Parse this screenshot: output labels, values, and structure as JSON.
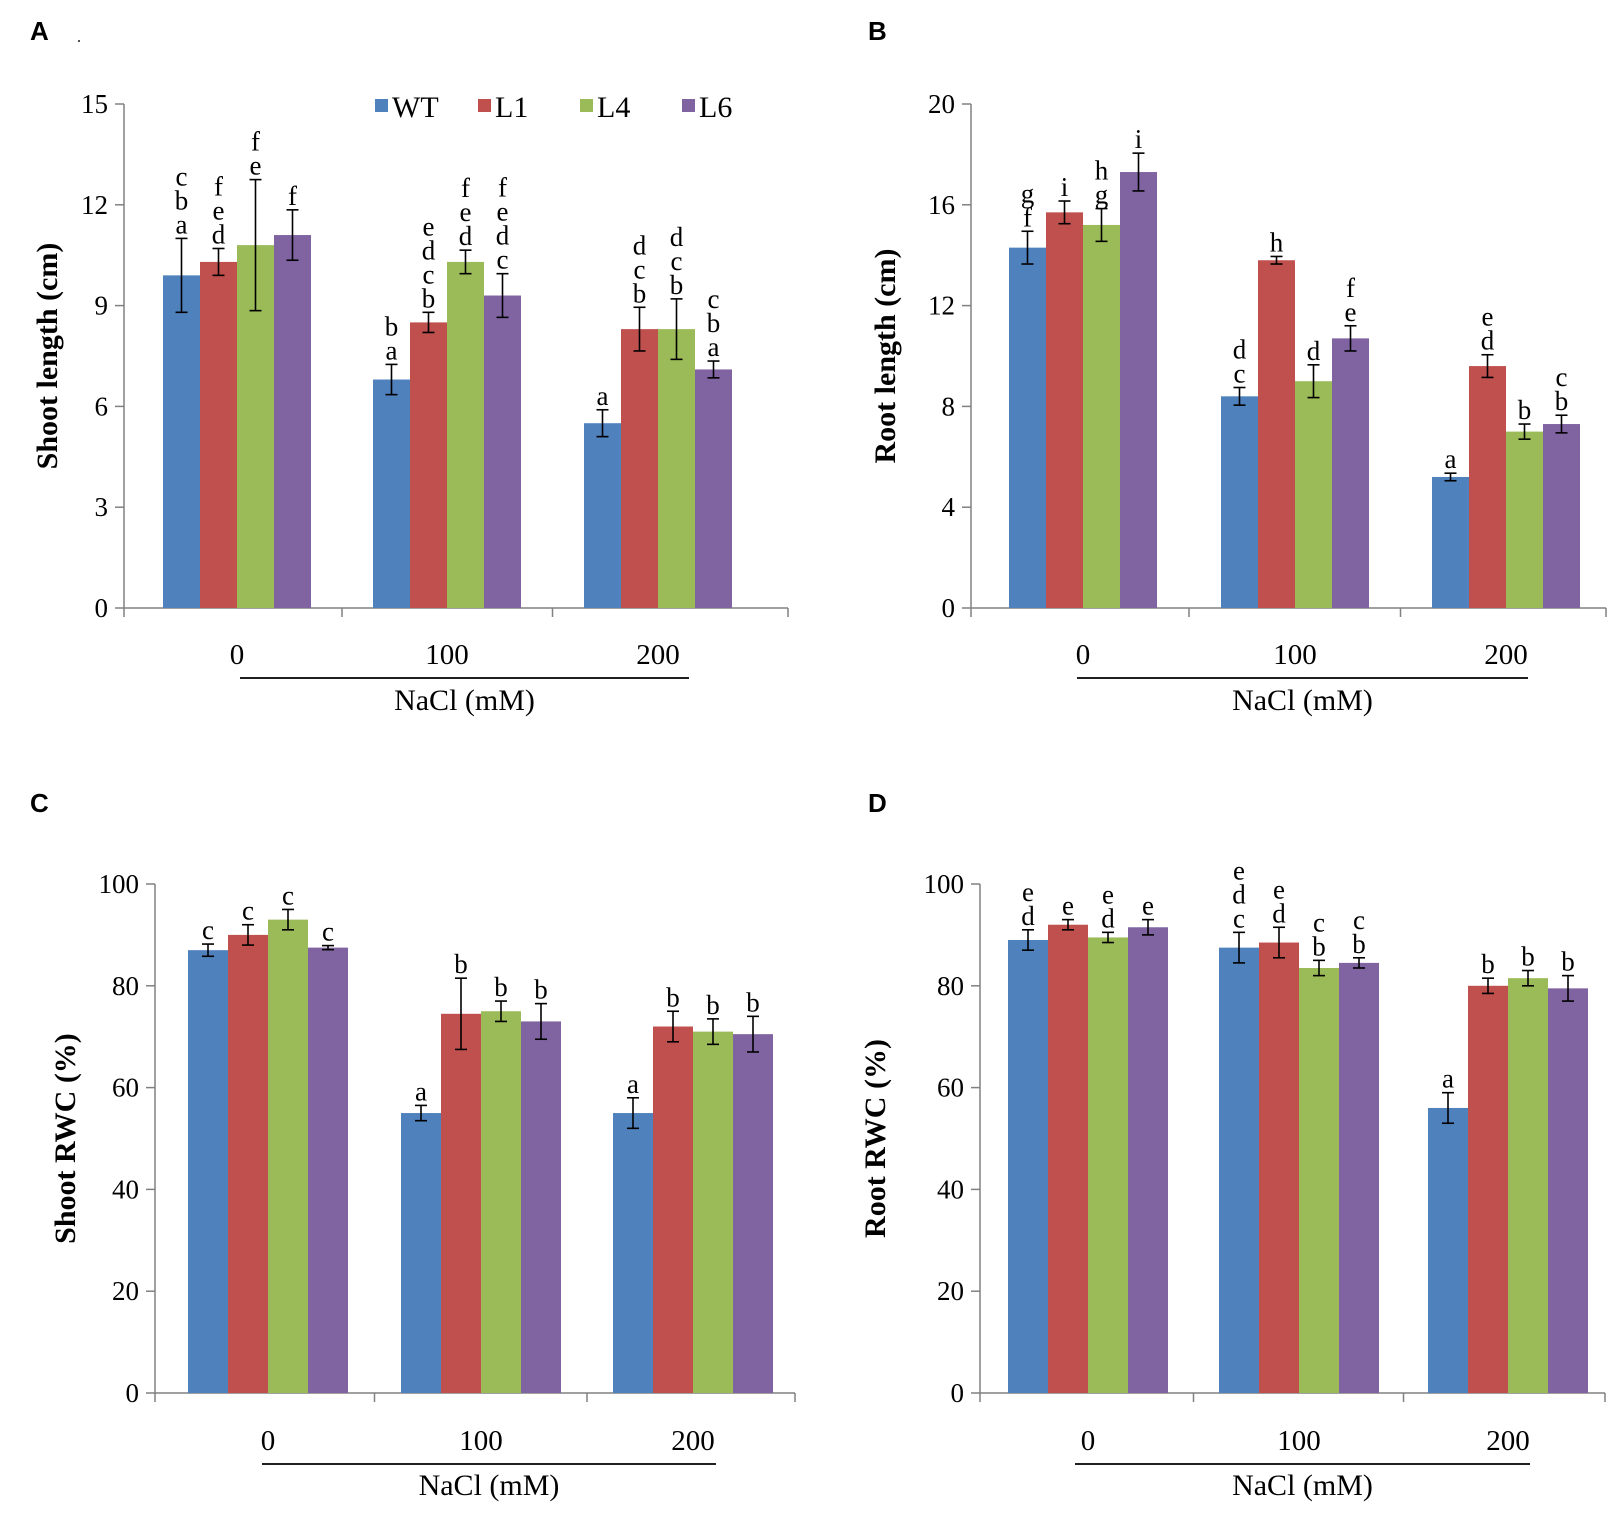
{
  "figure": {
    "colors": {
      "WT": "#4F81BD",
      "L1": "#C0504D",
      "L4": "#9BBB59",
      "L6": "#8064A2"
    }
  },
  "chart_data": [
    {
      "panel": "A",
      "type": "bar",
      "ylabel": "Shoot length (cm)",
      "xlabel": "NaCl (mM)",
      "ylim": [
        0,
        15
      ],
      "yticks": [
        0,
        3,
        6,
        9,
        12,
        15
      ],
      "categories": [
        "0",
        "100",
        "200"
      ],
      "legend": [
        "WT",
        "L1",
        "L4",
        "L6"
      ],
      "legend_position": "top-right",
      "series": [
        {
          "name": "WT",
          "values": [
            9.9,
            6.8,
            5.5
          ],
          "errors": [
            1.1,
            0.45,
            0.4
          ],
          "letters": [
            [
              "c",
              "b",
              "a"
            ],
            [
              "b",
              "a"
            ],
            [
              "a"
            ]
          ]
        },
        {
          "name": "L1",
          "values": [
            10.3,
            8.5,
            8.3
          ],
          "errors": [
            0.4,
            0.3,
            0.65
          ],
          "letters": [
            [
              "f",
              "e",
              "d"
            ],
            [
              "e",
              "d",
              "c",
              "b"
            ],
            [
              "d",
              "c",
              "b"
            ]
          ]
        },
        {
          "name": "L4",
          "values": [
            10.8,
            10.3,
            8.3
          ],
          "errors": [
            1.95,
            0.35,
            0.9
          ],
          "letters": [
            [
              "f",
              "e"
            ],
            [
              "f",
              "e",
              "d"
            ],
            [
              "d",
              "c",
              "b"
            ]
          ]
        },
        {
          "name": "L6",
          "values": [
            11.1,
            9.3,
            7.1
          ],
          "errors": [
            0.75,
            0.65,
            0.25
          ],
          "letters": [
            [
              "f"
            ],
            [
              "f",
              "e",
              "d",
              "c"
            ],
            [
              "c",
              "b",
              "a"
            ]
          ]
        }
      ]
    },
    {
      "panel": "B",
      "type": "bar",
      "ylabel": "Root length (cm)",
      "xlabel": "NaCl (mM)",
      "ylim": [
        0,
        20
      ],
      "yticks": [
        0,
        4,
        8,
        12,
        16,
        20
      ],
      "categories": [
        "0",
        "100",
        "200"
      ],
      "series": [
        {
          "name": "WT",
          "values": [
            14.3,
            8.4,
            5.2
          ],
          "errors": [
            0.65,
            0.35,
            0.15
          ],
          "letters": [
            [
              "g",
              "f"
            ],
            [
              "d",
              "c"
            ],
            [
              "a"
            ]
          ]
        },
        {
          "name": "L1",
          "values": [
            15.7,
            13.8,
            9.6
          ],
          "errors": [
            0.45,
            0.15,
            0.45
          ],
          "letters": [
            [
              "i"
            ],
            [
              "h"
            ],
            [
              "e",
              "d"
            ]
          ]
        },
        {
          "name": "L4",
          "values": [
            15.2,
            9.0,
            7.0
          ],
          "errors": [
            0.65,
            0.65,
            0.3
          ],
          "letters": [
            [
              "h",
              "g"
            ],
            [
              "d"
            ],
            [
              "b"
            ]
          ]
        },
        {
          "name": "L6",
          "values": [
            17.3,
            10.7,
            7.3
          ],
          "errors": [
            0.75,
            0.5,
            0.35
          ],
          "letters": [
            [
              "i"
            ],
            [
              "f",
              "e"
            ],
            [
              "c",
              "b"
            ]
          ]
        }
      ]
    },
    {
      "panel": "C",
      "type": "bar",
      "ylabel": "Shoot RWC (%)",
      "xlabel": "NaCl (mM)",
      "ylim": [
        0,
        100
      ],
      "yticks": [
        0,
        20,
        40,
        60,
        80,
        100
      ],
      "categories": [
        "0",
        "100",
        "200"
      ],
      "series": [
        {
          "name": "WT",
          "values": [
            87,
            55,
            55
          ],
          "errors": [
            1.2,
            1.5,
            3
          ],
          "letters": [
            [
              "c"
            ],
            [
              "a"
            ],
            [
              "a"
            ]
          ]
        },
        {
          "name": "L1",
          "values": [
            90,
            74.5,
            72
          ],
          "errors": [
            2,
            7,
            3
          ],
          "letters": [
            [
              "c"
            ],
            [
              "b"
            ],
            [
              "b"
            ]
          ]
        },
        {
          "name": "L4",
          "values": [
            93,
            75,
            71
          ],
          "errors": [
            2,
            2,
            2.5
          ],
          "letters": [
            [
              "c"
            ],
            [
              "b"
            ],
            [
              "b"
            ]
          ]
        },
        {
          "name": "L6",
          "values": [
            87.5,
            73,
            70.5
          ],
          "errors": [
            0.4,
            3.5,
            3.5
          ],
          "letters": [
            [
              "c"
            ],
            [
              "b"
            ],
            [
              "b"
            ]
          ]
        }
      ]
    },
    {
      "panel": "D",
      "type": "bar",
      "ylabel": "Root RWC  (%)",
      "xlabel": "NaCl (mM)",
      "ylim": [
        0,
        100
      ],
      "yticks": [
        0,
        20,
        40,
        60,
        80,
        100
      ],
      "categories": [
        "0",
        "100",
        "200"
      ],
      "series": [
        {
          "name": "WT",
          "values": [
            89,
            87.5,
            56
          ],
          "errors": [
            2,
            3,
            3
          ],
          "letters": [
            [
              "e",
              "d"
            ],
            [
              "e",
              "d",
              "c"
            ],
            [
              "a"
            ]
          ]
        },
        {
          "name": "L1",
          "values": [
            92,
            88.5,
            80
          ],
          "errors": [
            1,
            3,
            1.5
          ],
          "letters": [
            [
              "e"
            ],
            [
              "e",
              "d"
            ],
            [
              "b"
            ]
          ]
        },
        {
          "name": "L4",
          "values": [
            89.5,
            83.5,
            81.5
          ],
          "errors": [
            1,
            1.5,
            1.5
          ],
          "letters": [
            [
              "e",
              "d"
            ],
            [
              "c",
              "b"
            ],
            [
              "b"
            ]
          ]
        },
        {
          "name": "L6",
          "values": [
            91.5,
            84.5,
            79.5
          ],
          "errors": [
            1.5,
            1,
            2.5
          ],
          "letters": [
            [
              "e"
            ],
            [
              "c",
              "b"
            ],
            [
              "b"
            ]
          ]
        }
      ]
    }
  ]
}
